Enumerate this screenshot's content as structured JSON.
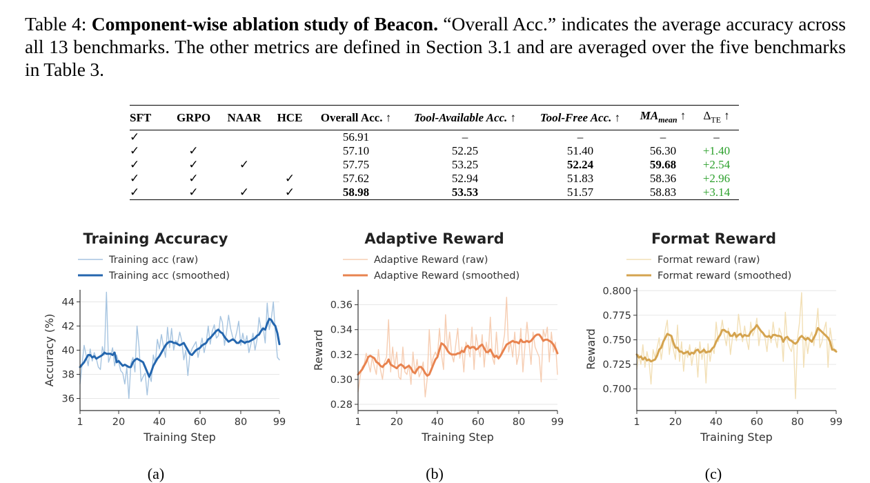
{
  "caption": {
    "label": "Table 4:",
    "title": "Component-wise ablation study of Beacon.",
    "body": " “Overall Acc.” indicates the average accuracy across all 13 benchmarks. The other metrics are defined in Section 3.1 and are averaged over the five benchmarks in Table 3."
  },
  "table": {
    "headers": {
      "sft": "SFT",
      "grpo": "GRPO",
      "naar": "NAAR",
      "hce": "HCE",
      "overall": "Overall Acc. ↑",
      "tool_avail": "Tool-Available Acc. ↑",
      "tool_free": "Tool-Free Acc. ↑",
      "ma_main": "MA",
      "ma_sub": "mean",
      "ma_arrow": " ↑",
      "dte_main": "Δ",
      "dte_sub": "TE",
      "dte_arrow": " ↑"
    },
    "rows": [
      {
        "sft": "✓",
        "grpo": "",
        "naar": "",
        "hce": "",
        "overall": "56.91",
        "tool_avail": "–",
        "tool_free": "–",
        "ma": "–",
        "dte": "–"
      },
      {
        "sft": "✓",
        "grpo": "✓",
        "naar": "",
        "hce": "",
        "overall": "57.10",
        "tool_avail": "52.25",
        "tool_free": "51.40",
        "ma": "56.30",
        "dte": "+1.40"
      },
      {
        "sft": "✓",
        "grpo": "✓",
        "naar": "✓",
        "hce": "",
        "overall": "57.75",
        "tool_avail": "53.25",
        "tool_free": "52.24",
        "ma": "59.68",
        "dte": "+2.54"
      },
      {
        "sft": "✓",
        "grpo": "✓",
        "naar": "",
        "hce": "✓",
        "overall": "57.62",
        "tool_avail": "52.94",
        "tool_free": "51.83",
        "ma": "58.36",
        "dte": "+2.96"
      },
      {
        "sft": "✓",
        "grpo": "✓",
        "naar": "✓",
        "hce": "✓",
        "overall": "58.98",
        "tool_avail": "53.53",
        "tool_free": "51.57",
        "ma": "58.83",
        "dte": "+3.14"
      }
    ]
  },
  "colors": {
    "acc_raw": "#a6c4e0",
    "acc_smooth": "#2466ae",
    "adapt_raw": "#f6cdb2",
    "adapt_smooth": "#e8834f",
    "format_raw": "#f2dfb5",
    "format_smooth": "#d4a34f",
    "delta_green": "#2ca02c"
  },
  "subfig_labels": [
    "(a)",
    "(b)",
    "(c)"
  ],
  "chart_data": [
    {
      "type": "line",
      "title": "Training Accuracy",
      "xlabel": "Training Step",
      "ylabel": "Accuracy (%)",
      "xlim": [
        1,
        99
      ],
      "ylim": [
        35.0,
        45.0
      ],
      "xticks": [
        "1",
        "20",
        "40",
        "60",
        "80",
        "99"
      ],
      "yticks": [
        "36",
        "38",
        "40",
        "42",
        "44"
      ],
      "grid": "horizontal",
      "legend_position": "top-left",
      "series": [
        {
          "name": "Training acc (raw)",
          "style": "raw",
          "x_start": 1,
          "values": [
            37.2,
            38.8,
            40.4,
            39.6,
            38.7,
            40.1,
            39.1,
            39.8,
            39.3,
            38.6,
            38.4,
            40.3,
            39.6,
            44.8,
            39.0,
            39.5,
            40.2,
            38.7,
            39.6,
            39.0,
            38.3,
            38.1,
            37.2,
            38.6,
            36.0,
            38.9,
            39.4,
            38.2,
            42.0,
            40.3,
            37.4,
            37.8,
            38.1,
            36.3,
            38.0,
            37.4,
            39.6,
            38.9,
            40.9,
            40.1,
            41.3,
            40.3,
            39.4,
            41.9,
            40.2,
            41.8,
            40.0,
            40.8,
            40.6,
            41.5,
            40.8,
            39.2,
            40.0,
            37.9,
            39.6,
            40.1,
            40.4,
            40.7,
            39.4,
            40.2,
            41.0,
            39.8,
            40.6,
            42.0,
            40.5,
            41.6,
            42.1,
            41.0,
            41.2,
            42.8,
            42.3,
            40.4,
            41.5,
            42.9,
            41.8,
            41.1,
            40.8,
            41.5,
            42.4,
            40.4,
            41.4,
            40.5,
            41.2,
            39.8,
            40.5,
            41.4,
            40.0,
            40.9,
            42.7,
            41.7,
            41.9,
            40.6,
            43.9,
            41.7,
            42.6,
            44.0,
            41.4,
            39.4,
            39.2
          ]
        },
        {
          "name": "Training acc (smoothed)",
          "style": "smooth",
          "x_start": 1,
          "values": [
            38.6,
            38.8,
            39.0,
            39.3,
            39.6,
            39.6,
            39.4,
            39.5,
            39.3,
            39.4,
            39.5,
            39.6,
            39.8,
            39.7,
            39.7,
            39.7,
            39.6,
            39.8,
            39.0,
            39.1,
            38.9,
            38.7,
            38.8,
            38.7,
            38.6,
            38.6,
            39.0,
            39.2,
            39.3,
            39.2,
            39.1,
            39.0,
            38.6,
            38.2,
            37.8,
            38.2,
            38.7,
            39.0,
            39.3,
            39.5,
            39.8,
            40.1,
            40.4,
            40.6,
            40.7,
            40.7,
            40.6,
            40.6,
            40.5,
            40.4,
            40.5,
            40.6,
            40.3,
            40.0,
            39.7,
            39.6,
            39.8,
            40.0,
            40.1,
            40.2,
            40.4,
            40.5,
            40.6,
            40.9,
            41.0,
            41.2,
            41.4,
            41.6,
            41.7,
            41.5,
            41.4,
            41.1,
            40.9,
            40.7,
            40.8,
            40.9,
            40.8,
            40.6,
            40.6,
            40.8,
            40.7,
            40.6,
            40.7,
            40.7,
            40.8,
            40.9,
            41.0,
            41.2,
            41.3,
            41.6,
            41.8,
            41.7,
            42.2,
            42.6,
            42.5,
            42.2,
            42.0,
            41.4,
            40.5
          ]
        }
      ]
    },
    {
      "type": "line",
      "title": "Adaptive Reward",
      "xlabel": "Training Step",
      "ylabel": "Reward",
      "xlim": [
        1,
        99
      ],
      "ylim": [
        0.275,
        0.372
      ],
      "xticks": [
        "1",
        "20",
        "40",
        "60",
        "80",
        "99"
      ],
      "yticks": [
        "0.28",
        "0.30",
        "0.32",
        "0.34",
        "0.36"
      ],
      "grid": "horizontal",
      "legend_position": "top-left",
      "series": [
        {
          "name": "Adaptive Reward (raw)",
          "style": "raw",
          "x_start": 1,
          "values": [
            0.29,
            0.302,
            0.31,
            0.312,
            0.321,
            0.314,
            0.306,
            0.318,
            0.31,
            0.304,
            0.324,
            0.308,
            0.3,
            0.314,
            0.318,
            0.348,
            0.306,
            0.326,
            0.31,
            0.322,
            0.302,
            0.3,
            0.326,
            0.306,
            0.304,
            0.312,
            0.296,
            0.322,
            0.304,
            0.316,
            0.302,
            0.306,
            0.314,
            0.286,
            0.301,
            0.34,
            0.311,
            0.318,
            0.322,
            0.318,
            0.341,
            0.32,
            0.308,
            0.352,
            0.322,
            0.338,
            0.32,
            0.314,
            0.328,
            0.341,
            0.317,
            0.326,
            0.306,
            0.33,
            0.326,
            0.318,
            0.342,
            0.308,
            0.336,
            0.326,
            0.318,
            0.336,
            0.31,
            0.33,
            0.32,
            0.35,
            0.318,
            0.312,
            0.338,
            0.316,
            0.318,
            0.326,
            0.336,
            0.366,
            0.322,
            0.33,
            0.318,
            0.338,
            0.312,
            0.32,
            0.341,
            0.306,
            0.326,
            0.346,
            0.33,
            0.312,
            0.338,
            0.326,
            0.322,
            0.318,
            0.298,
            0.34,
            0.334,
            0.342,
            0.314,
            0.338,
            0.322,
            0.33,
            0.304
          ]
        },
        {
          "name": "Adaptive Reward (smoothed)",
          "style": "smooth",
          "x_start": 1,
          "values": [
            0.304,
            0.306,
            0.308,
            0.311,
            0.314,
            0.318,
            0.319,
            0.318,
            0.317,
            0.314,
            0.313,
            0.311,
            0.31,
            0.312,
            0.313,
            0.316,
            0.312,
            0.311,
            0.31,
            0.309,
            0.311,
            0.312,
            0.311,
            0.309,
            0.31,
            0.311,
            0.309,
            0.306,
            0.305,
            0.308,
            0.31,
            0.31,
            0.308,
            0.305,
            0.303,
            0.304,
            0.308,
            0.312,
            0.316,
            0.318,
            0.324,
            0.329,
            0.328,
            0.326,
            0.323,
            0.321,
            0.32,
            0.32,
            0.32,
            0.321,
            0.321,
            0.323,
            0.322,
            0.326,
            0.327,
            0.325,
            0.326,
            0.326,
            0.324,
            0.325,
            0.327,
            0.328,
            0.325,
            0.322,
            0.322,
            0.324,
            0.321,
            0.318,
            0.319,
            0.317,
            0.319,
            0.322,
            0.325,
            0.328,
            0.329,
            0.33,
            0.331,
            0.33,
            0.33,
            0.329,
            0.332,
            0.33,
            0.33,
            0.331,
            0.33,
            0.331,
            0.333,
            0.335,
            0.336,
            0.336,
            0.334,
            0.331,
            0.332,
            0.332,
            0.331,
            0.33,
            0.328,
            0.325,
            0.321
          ]
        }
      ]
    },
    {
      "type": "line",
      "title": "Format Reward",
      "xlabel": "Training Step",
      "ylabel": "Reward",
      "xlim": [
        1,
        99
      ],
      "ylim": [
        0.678,
        0.803
      ],
      "xticks": [
        "1",
        "20",
        "40",
        "60",
        "80",
        "99"
      ],
      "yticks": [
        "0.700",
        "0.725",
        "0.750",
        "0.775",
        "0.800"
      ],
      "grid": "horizontal",
      "legend_position": "top-left",
      "series": [
        {
          "name": "Format reward (raw)",
          "style": "raw",
          "x_start": 1,
          "values": [
            0.72,
            0.735,
            0.725,
            0.745,
            0.722,
            0.738,
            0.728,
            0.705,
            0.74,
            0.732,
            0.742,
            0.752,
            0.73,
            0.745,
            0.76,
            0.77,
            0.735,
            0.752,
            0.74,
            0.73,
            0.765,
            0.728,
            0.748,
            0.718,
            0.74,
            0.732,
            0.745,
            0.724,
            0.738,
            0.742,
            0.712,
            0.748,
            0.73,
            0.742,
            0.706,
            0.746,
            0.728,
            0.742,
            0.736,
            0.768,
            0.748,
            0.756,
            0.77,
            0.755,
            0.744,
            0.762,
            0.735,
            0.752,
            0.756,
            0.749,
            0.776,
            0.76,
            0.748,
            0.764,
            0.75,
            0.74,
            0.768,
            0.754,
            0.76,
            0.772,
            0.744,
            0.76,
            0.756,
            0.752,
            0.738,
            0.76,
            0.747,
            0.768,
            0.752,
            0.742,
            0.762,
            0.756,
            0.728,
            0.778,
            0.748,
            0.742,
            0.738,
            0.75,
            0.69,
            0.752,
            0.768,
            0.798,
            0.722,
            0.754,
            0.736,
            0.752,
            0.758,
            0.744,
            0.76,
            0.782,
            0.742,
            0.748,
            0.76,
            0.768,
            0.722,
            0.762,
            0.748,
            0.738,
            0.74
          ]
        },
        {
          "name": "Format reward (smoothed)",
          "style": "smooth",
          "x_start": 1,
          "values": [
            0.735,
            0.732,
            0.733,
            0.73,
            0.732,
            0.729,
            0.73,
            0.728,
            0.729,
            0.73,
            0.734,
            0.74,
            0.742,
            0.748,
            0.752,
            0.756,
            0.755,
            0.754,
            0.747,
            0.742,
            0.742,
            0.738,
            0.738,
            0.736,
            0.737,
            0.738,
            0.735,
            0.737,
            0.736,
            0.739,
            0.74,
            0.737,
            0.738,
            0.74,
            0.737,
            0.738,
            0.738,
            0.741,
            0.743,
            0.748,
            0.752,
            0.755,
            0.76,
            0.76,
            0.758,
            0.758,
            0.754,
            0.754,
            0.757,
            0.753,
            0.755,
            0.756,
            0.753,
            0.755,
            0.754,
            0.754,
            0.758,
            0.76,
            0.762,
            0.765,
            0.762,
            0.759,
            0.757,
            0.754,
            0.753,
            0.754,
            0.752,
            0.755,
            0.755,
            0.754,
            0.754,
            0.753,
            0.748,
            0.752,
            0.753,
            0.75,
            0.749,
            0.747,
            0.746,
            0.748,
            0.752,
            0.754,
            0.752,
            0.75,
            0.752,
            0.75,
            0.748,
            0.752,
            0.756,
            0.762,
            0.76,
            0.758,
            0.756,
            0.754,
            0.752,
            0.748,
            0.74,
            0.74,
            0.738
          ]
        }
      ]
    }
  ]
}
